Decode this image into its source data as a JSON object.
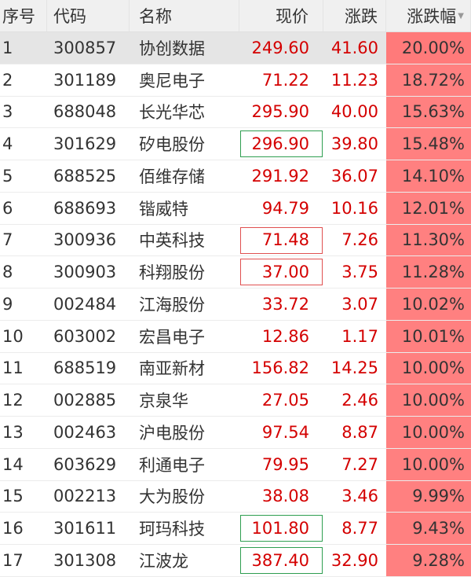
{
  "columns": [
    "序号",
    "代码",
    "名称",
    "现价",
    "涨跌",
    "涨跌幅"
  ],
  "sort_icon": "triangle-down",
  "colors": {
    "up": "#d40000",
    "pct_bg": "#ff8080",
    "box_green": "#2e9e50",
    "box_red": "#e05050"
  },
  "rows": [
    {
      "no": "1",
      "code": "300857",
      "name": "协创数据",
      "price": "249.60",
      "chg": "41.60",
      "pct": "20.00%",
      "selected": true,
      "box": ""
    },
    {
      "no": "2",
      "code": "301189",
      "name": "奥尼电子",
      "price": "71.22",
      "chg": "11.23",
      "pct": "18.72%",
      "box": ""
    },
    {
      "no": "3",
      "code": "688048",
      "name": "长光华芯",
      "price": "295.90",
      "chg": "40.00",
      "pct": "15.63%",
      "box": ""
    },
    {
      "no": "4",
      "code": "301629",
      "name": "矽电股份",
      "price": "296.90",
      "chg": "39.80",
      "pct": "15.48%",
      "box": "green"
    },
    {
      "no": "5",
      "code": "688525",
      "name": "佰维存储",
      "price": "291.92",
      "chg": "36.07",
      "pct": "14.10%",
      "box": ""
    },
    {
      "no": "6",
      "code": "688693",
      "name": "锴威特",
      "price": "94.79",
      "chg": "10.16",
      "pct": "12.01%",
      "box": ""
    },
    {
      "no": "7",
      "code": "300936",
      "name": "中英科技",
      "price": "71.48",
      "chg": "7.26",
      "pct": "11.30%",
      "box": "red"
    },
    {
      "no": "8",
      "code": "300903",
      "name": "科翔股份",
      "price": "37.00",
      "chg": "3.75",
      "pct": "11.28%",
      "box": "red"
    },
    {
      "no": "9",
      "code": "002484",
      "name": "江海股份",
      "price": "33.72",
      "chg": "3.07",
      "pct": "10.02%",
      "box": ""
    },
    {
      "no": "10",
      "code": "603002",
      "name": "宏昌电子",
      "price": "12.86",
      "chg": "1.17",
      "pct": "10.01%",
      "box": ""
    },
    {
      "no": "11",
      "code": "688519",
      "name": "南亚新材",
      "price": "156.82",
      "chg": "14.25",
      "pct": "10.00%",
      "box": ""
    },
    {
      "no": "12",
      "code": "002885",
      "name": "京泉华",
      "price": "27.05",
      "chg": "2.46",
      "pct": "10.00%",
      "box": ""
    },
    {
      "no": "13",
      "code": "002463",
      "name": "沪电股份",
      "price": "97.54",
      "chg": "8.87",
      "pct": "10.00%",
      "box": ""
    },
    {
      "no": "14",
      "code": "603629",
      "name": "利通电子",
      "price": "79.95",
      "chg": "7.27",
      "pct": "10.00%",
      "box": ""
    },
    {
      "no": "15",
      "code": "002213",
      "name": "大为股份",
      "price": "38.08",
      "chg": "3.46",
      "pct": "9.99%",
      "box": ""
    },
    {
      "no": "16",
      "code": "301611",
      "name": "珂玛科技",
      "price": "101.80",
      "chg": "8.77",
      "pct": "9.43%",
      "box": "green"
    },
    {
      "no": "17",
      "code": "301308",
      "name": "江波龙",
      "price": "387.40",
      "chg": "32.90",
      "pct": "9.28%",
      "box": "green"
    }
  ]
}
